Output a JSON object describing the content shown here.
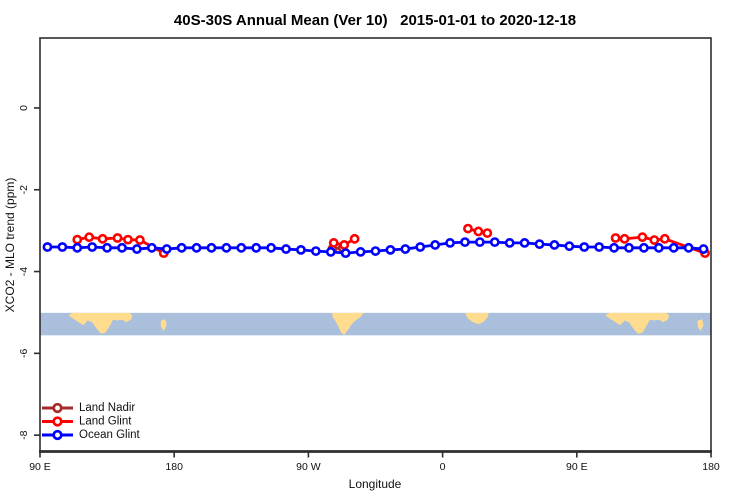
{
  "chart_data": {
    "type": "line",
    "title": "40S-30S Annual Mean (Ver 10)   2015-01-01 to 2020-12-18",
    "xlabel": "Longitude",
    "ylabel": "XCO2 - MLO trend (ppm)",
    "xlim": [
      90,
      540
    ],
    "ylim": [
      -8.4,
      1.71
    ],
    "grid": false,
    "x_ticks": [
      {
        "lon": 90,
        "label": "90 E"
      },
      {
        "lon": 180,
        "label": "180"
      },
      {
        "lon": 270,
        "label": "90 W"
      },
      {
        "lon": 360,
        "label": "0"
      },
      {
        "lon": 450,
        "label": "90 E"
      },
      {
        "lon": 540,
        "label": "180"
      }
    ],
    "y_ticks": [
      {
        "value": 0,
        "label": "0"
      },
      {
        "value": -2,
        "label": "-2"
      },
      {
        "value": -4,
        "label": "-4"
      },
      {
        "value": -6,
        "label": "-6"
      },
      {
        "value": -8,
        "label": "-8"
      }
    ],
    "series": [
      {
        "name": "Land Nadir",
        "color": "#A52A2A",
        "marker": "open-circle",
        "segments": [
          [
            [
              286,
              -3.45
            ],
            [
              293,
              -3.42
            ]
          ]
        ]
      },
      {
        "name": "Land Glint",
        "color": "#FF0000",
        "marker": "open-circle",
        "segments": [
          [
            [
              115,
              -3.22
            ],
            [
              123,
              -3.16
            ],
            [
              132,
              -3.2
            ],
            [
              142,
              -3.18
            ],
            [
              149,
              -3.22
            ],
            [
              157,
              -3.23
            ],
            [
              173,
              -3.55
            ]
          ],
          [
            [
              287,
              -3.3
            ],
            [
              294,
              -3.35
            ],
            [
              301,
              -3.2
            ]
          ],
          [
            [
              377,
              -2.95
            ],
            [
              384,
              -3.02
            ],
            [
              390,
              -3.06
            ]
          ],
          [
            [
              476,
              -3.18
            ],
            [
              482,
              -3.2
            ],
            [
              494,
              -3.16
            ],
            [
              502,
              -3.23
            ],
            [
              509,
              -3.2
            ],
            [
              536,
              -3.55
            ]
          ]
        ]
      },
      {
        "name": "Ocean Glint",
        "color": "#0000FF",
        "marker": "open-circle",
        "segments": [
          [
            [
              95,
              -3.4
            ],
            [
              105,
              -3.4
            ],
            [
              115,
              -3.42
            ],
            [
              125,
              -3.4
            ],
            [
              135,
              -3.42
            ],
            [
              145,
              -3.42
            ],
            [
              155,
              -3.45
            ],
            [
              165,
              -3.42
            ],
            [
              175,
              -3.45
            ],
            [
              185,
              -3.42
            ],
            [
              195,
              -3.42
            ],
            [
              205,
              -3.42
            ],
            [
              215,
              -3.42
            ],
            [
              225,
              -3.42
            ],
            [
              235,
              -3.42
            ],
            [
              245,
              -3.42
            ],
            [
              255,
              -3.45
            ],
            [
              265,
              -3.47
            ],
            [
              275,
              -3.5
            ],
            [
              285,
              -3.52
            ],
            [
              295,
              -3.55
            ],
            [
              305,
              -3.52
            ],
            [
              315,
              -3.5
            ],
            [
              325,
              -3.47
            ],
            [
              335,
              -3.45
            ],
            [
              345,
              -3.4
            ],
            [
              355,
              -3.35
            ],
            [
              365,
              -3.3
            ],
            [
              375,
              -3.28
            ],
            [
              385,
              -3.28
            ],
            [
              395,
              -3.28
            ],
            [
              405,
              -3.3
            ],
            [
              415,
              -3.3
            ],
            [
              425,
              -3.33
            ],
            [
              435,
              -3.35
            ],
            [
              445,
              -3.38
            ],
            [
              455,
              -3.4
            ],
            [
              465,
              -3.4
            ],
            [
              475,
              -3.42
            ],
            [
              485,
              -3.42
            ],
            [
              495,
              -3.42
            ],
            [
              505,
              -3.42
            ],
            [
              515,
              -3.42
            ],
            [
              525,
              -3.42
            ],
            [
              535,
              -3.45
            ]
          ]
        ]
      }
    ],
    "map_band": {
      "value_top": -5.01,
      "value_bottom": -5.56,
      "ocean_color": "#A9BFDC",
      "land_color": "#FFDC8E",
      "land_shapes": [
        {
          "name": "australia",
          "offsets": [
            0,
            360
          ],
          "points": [
            [
              109,
              0.1
            ],
            [
              112,
              0
            ],
            [
              150,
              0
            ],
            [
              152,
              0.12
            ],
            [
              151,
              0.3
            ],
            [
              148,
              0.42
            ],
            [
              145,
              0.3
            ],
            [
              142,
              0.34
            ],
            [
              139,
              0.3
            ],
            [
              137,
              0.55
            ],
            [
              134,
              0.88
            ],
            [
              131,
              0.93
            ],
            [
              128,
              0.7
            ],
            [
              125,
              0.42
            ],
            [
              122,
              0.34
            ],
            [
              119,
              0.55
            ],
            [
              116,
              0.42
            ],
            [
              112,
              0.25
            ]
          ]
        },
        {
          "name": "new-zealand",
          "offsets": [
            0,
            360
          ],
          "points": [
            [
              171,
              0.35
            ],
            [
              174,
              0.28
            ],
            [
              175,
              0.55
            ],
            [
              173,
              0.8
            ],
            [
              171,
              0.6
            ]
          ]
        },
        {
          "name": "south-america",
          "offsets": [
            0
          ],
          "points": [
            [
              286,
              0
            ],
            [
              307,
              0
            ],
            [
              305,
              0.18
            ],
            [
              302,
              0.32
            ],
            [
              299,
              0.5
            ],
            [
              297,
              0.72
            ],
            [
              294,
              0.98
            ],
            [
              292,
              0.88
            ],
            [
              290,
              0.6
            ],
            [
              288,
              0.35
            ],
            [
              286,
              0.15
            ]
          ]
        },
        {
          "name": "africa",
          "offsets": [
            0
          ],
          "points": [
            [
              375,
              0
            ],
            [
              391,
              0
            ],
            [
              390,
              0.22
            ],
            [
              387,
              0.42
            ],
            [
              384,
              0.5
            ],
            [
              380,
              0.4
            ],
            [
              377,
              0.25
            ]
          ]
        }
      ]
    },
    "legend": {
      "position": "bottom-left",
      "items": [
        {
          "label": "Land Nadir",
          "color": "#A52A2A"
        },
        {
          "label": "Land Glint",
          "color": "#FF0000"
        },
        {
          "label": "Ocean Glint",
          "color": "#0000FF"
        }
      ]
    }
  }
}
